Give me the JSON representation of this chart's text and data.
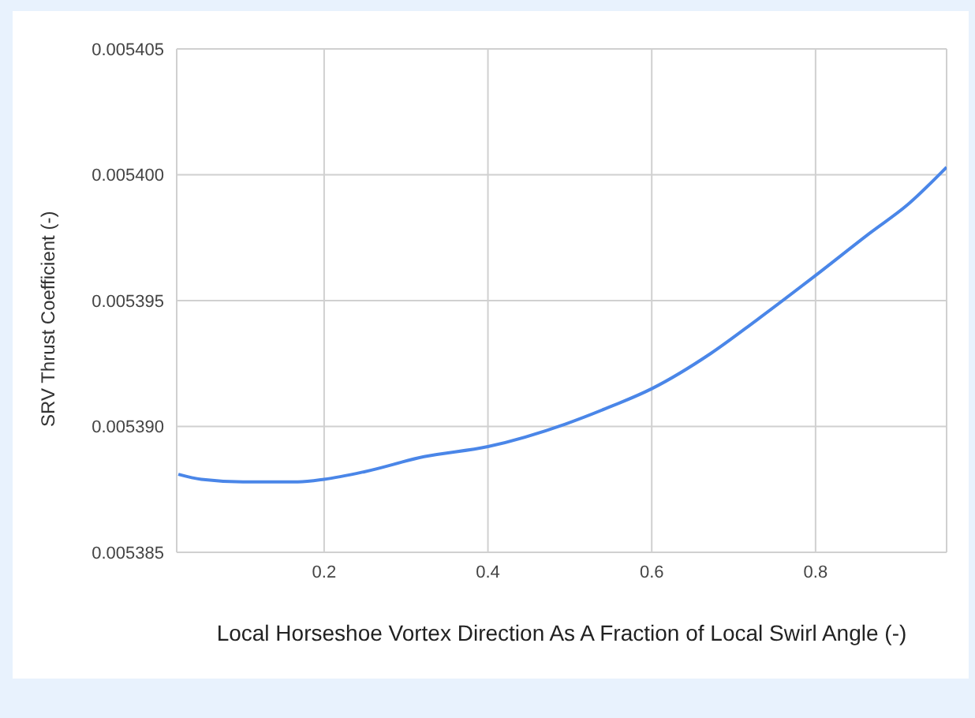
{
  "chart_data": {
    "type": "line",
    "xlabel": "Local Horseshoe Vortex Direction As A Fraction of Local Swirl Angle (-)",
    "ylabel": "SRV Thrust Coefficient (-)",
    "x": [
      0.022,
      0.05,
      0.101,
      0.168,
      0.2,
      0.249,
      0.322,
      0.4,
      0.495,
      0.543,
      0.6,
      0.672,
      0.727,
      0.8,
      0.867,
      0.912,
      0.96
    ],
    "series": [
      {
        "color": "#4a86e8",
        "values": [
          0.0053881,
          0.0053879,
          0.0053878,
          0.0053878,
          0.0053879,
          0.0053882,
          0.0053888,
          0.0053892,
          0.0053901,
          0.0053907,
          0.0053915,
          0.0053929,
          0.0053942,
          0.005396,
          0.0053977,
          0.0053988,
          0.0054003
        ]
      }
    ],
    "xlim": [
      0.02,
      0.96
    ],
    "xticks": [
      0.2,
      0.4,
      0.6,
      0.8
    ],
    "ylim": [
      0.005385,
      0.005405
    ],
    "yticks": [
      {
        "value": 0.005385,
        "label": "0.005385"
      },
      {
        "value": 0.00539,
        "label": "0.005390"
      },
      {
        "value": 0.005395,
        "label": "0.005395"
      },
      {
        "value": 0.0054,
        "label": "0.005400"
      },
      {
        "value": 0.005405,
        "label": "0.005405"
      }
    ],
    "grid": true,
    "legend": false,
    "marker": "none",
    "line_style": "solid"
  }
}
